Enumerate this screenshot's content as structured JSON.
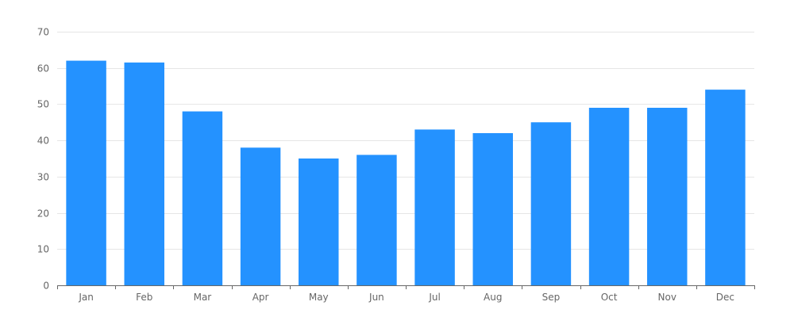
{
  "chart_data": {
    "type": "bar",
    "categories": [
      "Jan",
      "Feb",
      "Mar",
      "Apr",
      "May",
      "Jun",
      "Jul",
      "Aug",
      "Sep",
      "Oct",
      "Nov",
      "Dec"
    ],
    "values": [
      62,
      61.5,
      48,
      38,
      35,
      36,
      43,
      42,
      45,
      49,
      49,
      54
    ],
    "ylim": [
      0,
      70
    ],
    "yticks": [
      0,
      10,
      20,
      30,
      40,
      50,
      60,
      70
    ],
    "grid": true,
    "legend": "none",
    "bar_color": "#2492ff",
    "title": "",
    "xlabel": "",
    "ylabel": ""
  }
}
